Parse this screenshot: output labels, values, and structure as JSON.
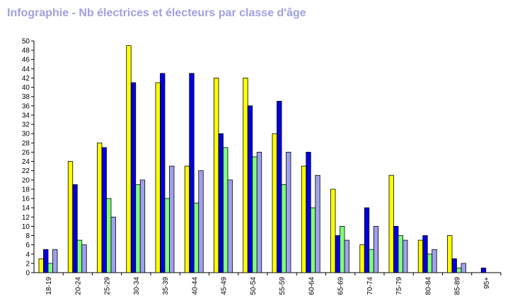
{
  "chart_data": {
    "type": "bar",
    "title": "Infographie - Nb électrices et électeurs par classe d'âge",
    "xlabel": "",
    "ylabel": "",
    "ylim": [
      0,
      50
    ],
    "ytick_step": 2,
    "grid": false,
    "categories": [
      "18-19",
      "20-24",
      "25-29",
      "30-34",
      "35-39",
      "40-44",
      "45-49",
      "50-54",
      "55-59",
      "60-64",
      "65-69",
      "70-74",
      "75-79",
      "80-84",
      "85-89",
      "95+"
    ],
    "series": [
      {
        "color": "#ffff00",
        "values": [
          3,
          24,
          28,
          49,
          41,
          23,
          42,
          42,
          30,
          23,
          18,
          6,
          21,
          7,
          8,
          0
        ]
      },
      {
        "color": "#0000e0",
        "values": [
          5,
          19,
          27,
          41,
          43,
          43,
          30,
          36,
          37,
          26,
          8,
          14,
          10,
          8,
          3,
          1
        ]
      },
      {
        "color": "#80ff80",
        "values": [
          2,
          7,
          16,
          19,
          16,
          15,
          27,
          25,
          19,
          14,
          10,
          5,
          8,
          4,
          1,
          0
        ]
      },
      {
        "color": "#a0a0f0",
        "values": [
          5,
          6,
          12,
          20,
          23,
          22,
          20,
          26,
          26,
          21,
          7,
          10,
          7,
          5,
          2,
          0
        ]
      }
    ]
  }
}
